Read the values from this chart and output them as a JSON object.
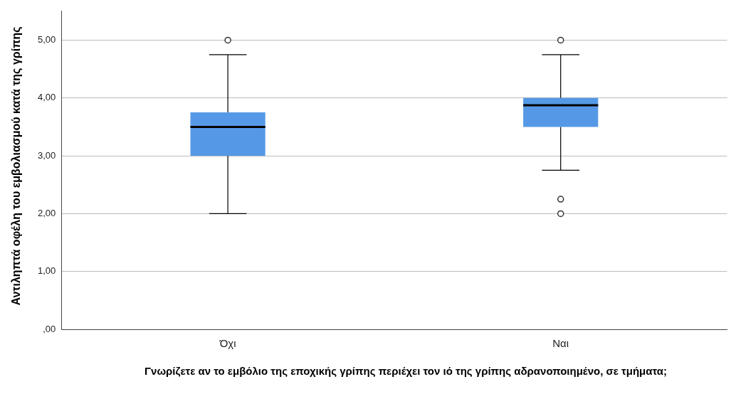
{
  "chart_data": {
    "type": "box",
    "xlabel": "Γνωρίζετε αν το εμβόλιο της εποχικής γρίπης περιέχει τον ιό της γρίπης αδρανοποιημένο, σε τμήματα;",
    "ylabel": "Αντιληπτά οφέλη του εμβολιασμού κατά της γρίπης",
    "categories": [
      "Όχι",
      "Ναι"
    ],
    "color": "#5599e6",
    "boxes": [
      {
        "low": 2,
        "q1": 3,
        "median": 3.5,
        "q3": 3.75,
        "high": 4.75,
        "outliers": [
          5
        ]
      },
      {
        "low": 2.75,
        "q1": 3.5,
        "median": 3.875,
        "q3": 4,
        "high": 4.75,
        "outliers": [
          5,
          2.25,
          2
        ]
      }
    ],
    "ylim": [
      0,
      5.5
    ],
    "yticks": [
      {
        "value": 0,
        "label": ",00"
      },
      {
        "value": 1,
        "label": "1,00"
      },
      {
        "value": 2,
        "label": "2,00"
      },
      {
        "value": 3,
        "label": "3,00"
      },
      {
        "value": 4,
        "label": "4,00"
      },
      {
        "value": 5,
        "label": "5,00"
      }
    ],
    "grid": "y",
    "legend": false
  }
}
